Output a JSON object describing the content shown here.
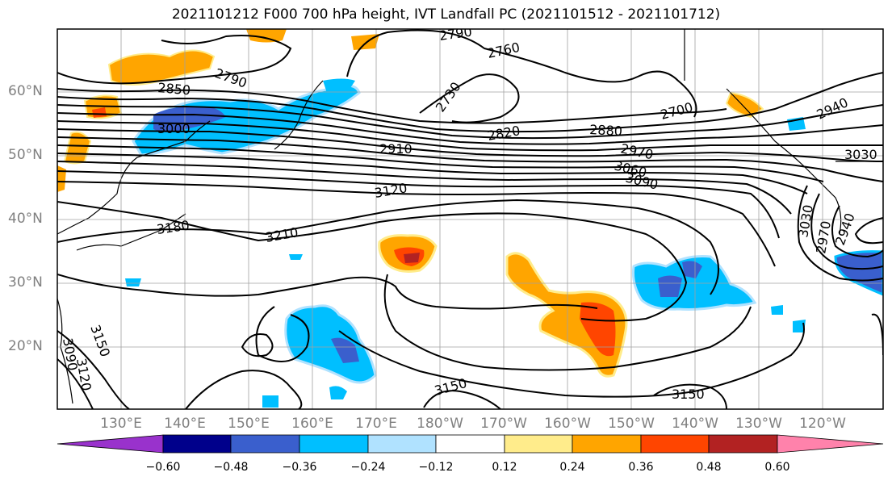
{
  "title": "2021101212 F000 700 hPa height, IVT Landfall PC (2021101512 - 2021101712)",
  "lat_labels": [
    "60°N",
    "50°N",
    "40°N",
    "30°N",
    "20°N"
  ],
  "lon_labels": [
    "130°E",
    "140°E",
    "150°E",
    "160°E",
    "170°E",
    "180°W",
    "170°W",
    "160°W",
    "150°W",
    "140°W",
    "130°W",
    "120°W"
  ],
  "colorbar": {
    "ticks": [
      "−0.60",
      "−0.48",
      "−0.36",
      "−0.24",
      "−0.12",
      "0.12",
      "0.24",
      "0.36",
      "0.48",
      "0.60"
    ],
    "colors": [
      "#9932cc",
      "#00008b",
      "#3a5fcd",
      "#00bfff",
      "#b0e2ff",
      "#ffffff",
      "#ffec8b",
      "#ffa500",
      "#ff4500",
      "#b22222",
      "#ff82ab"
    ]
  },
  "contour_labels": [
    "2790",
    "2760",
    "2790",
    "2730",
    "2850",
    "3000",
    "2820",
    "2880",
    "2700",
    "2910",
    "2970",
    "2940",
    "3030",
    "3060",
    "3090",
    "3120",
    "3180",
    "3210",
    "3030",
    "2970",
    "2940",
    "3150",
    "3120",
    "3090",
    "3150",
    "3150"
  ]
}
